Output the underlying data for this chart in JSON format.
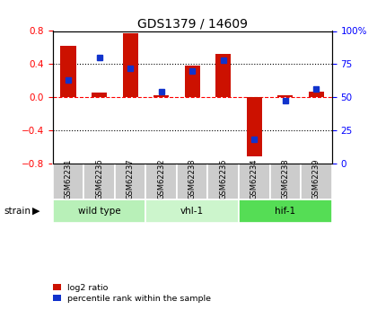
{
  "title": "GDS1379 / 14609",
  "samples": [
    "GSM62231",
    "GSM62236",
    "GSM62237",
    "GSM62232",
    "GSM62233",
    "GSM62235",
    "GSM62234",
    "GSM62238",
    "GSM62239"
  ],
  "log2_ratio": [
    0.62,
    0.05,
    0.77,
    0.02,
    0.38,
    0.52,
    -0.72,
    0.02,
    0.07
  ],
  "percentile_rank": [
    63,
    80,
    72,
    54,
    70,
    78,
    18,
    47,
    56
  ],
  "groups": [
    {
      "label": "wild type",
      "start": 0,
      "end": 3,
      "color": "#b8f0b8"
    },
    {
      "label": "vhl-1",
      "start": 3,
      "end": 6,
      "color": "#ccf5cc"
    },
    {
      "label": "hif-1",
      "start": 6,
      "end": 9,
      "color": "#55dd55"
    }
  ],
  "ylim_left": [
    -0.8,
    0.8
  ],
  "ylim_right": [
    0,
    100
  ],
  "yticks_left": [
    -0.8,
    -0.4,
    0.0,
    0.4,
    0.8
  ],
  "yticks_right": [
    0,
    25,
    50,
    75,
    100
  ],
  "bar_color": "#cc1100",
  "dot_color": "#1133cc",
  "sample_bg": "#cccccc",
  "legend_log2": "log2 ratio",
  "legend_pct": "percentile rank within the sample",
  "bar_width": 0.5
}
